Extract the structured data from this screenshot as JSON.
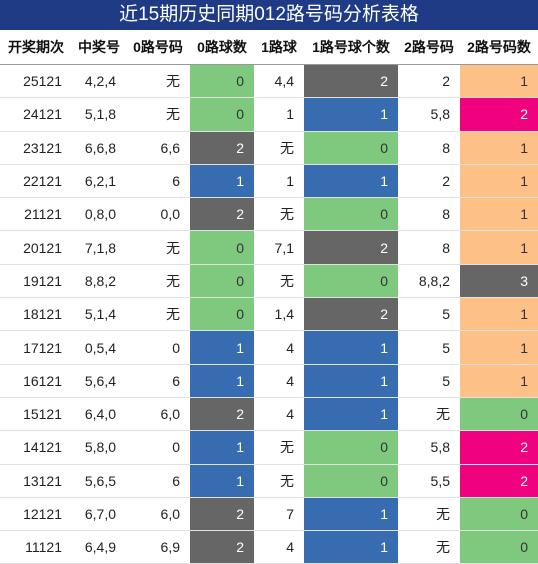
{
  "header": {
    "title": "近15期历史同期012路号码分析表格"
  },
  "table": {
    "columns": [
      "开奖期次",
      "中奖号",
      "0路号码",
      "0路球数",
      "1路球",
      "1路号球个数",
      "2路号码",
      "2路号码数"
    ],
    "rows": [
      [
        "25121",
        "4,2,4",
        "无",
        "0",
        "4,4",
        "2",
        "2",
        "1"
      ],
      [
        "24121",
        "5,1,8",
        "无",
        "0",
        "1",
        "1",
        "5,8",
        "2"
      ],
      [
        "23121",
        "6,6,8",
        "6,6",
        "2",
        "无",
        "0",
        "8",
        "1"
      ],
      [
        "22121",
        "6,2,1",
        "6",
        "1",
        "1",
        "1",
        "2",
        "1"
      ],
      [
        "21121",
        "0,8,0",
        "0,0",
        "2",
        "无",
        "0",
        "8",
        "1"
      ],
      [
        "20121",
        "7,1,8",
        "无",
        "0",
        "7,1",
        "2",
        "8",
        "1"
      ],
      [
        "19121",
        "8,8,2",
        "无",
        "0",
        "无",
        "0",
        "8,8,2",
        "3"
      ],
      [
        "18121",
        "5,1,4",
        "无",
        "0",
        "1,4",
        "2",
        "5",
        "1"
      ],
      [
        "17121",
        "0,5,4",
        "0",
        "1",
        "4",
        "1",
        "5",
        "1"
      ],
      [
        "16121",
        "5,6,4",
        "6",
        "1",
        "4",
        "1",
        "5",
        "1"
      ],
      [
        "15121",
        "6,4,0",
        "6,0",
        "2",
        "4",
        "1",
        "无",
        "0"
      ],
      [
        "14121",
        "5,8,0",
        "0",
        "1",
        "无",
        "0",
        "5,8",
        "2"
      ],
      [
        "13121",
        "5,6,5",
        "6",
        "1",
        "无",
        "0",
        "5,5",
        "2"
      ],
      [
        "12121",
        "6,7,0",
        "6,0",
        "2",
        "7",
        "1",
        "无",
        "0"
      ],
      [
        "11121",
        "6,4,9",
        "6,9",
        "2",
        "4",
        "1",
        "无",
        "0"
      ]
    ]
  }
}
